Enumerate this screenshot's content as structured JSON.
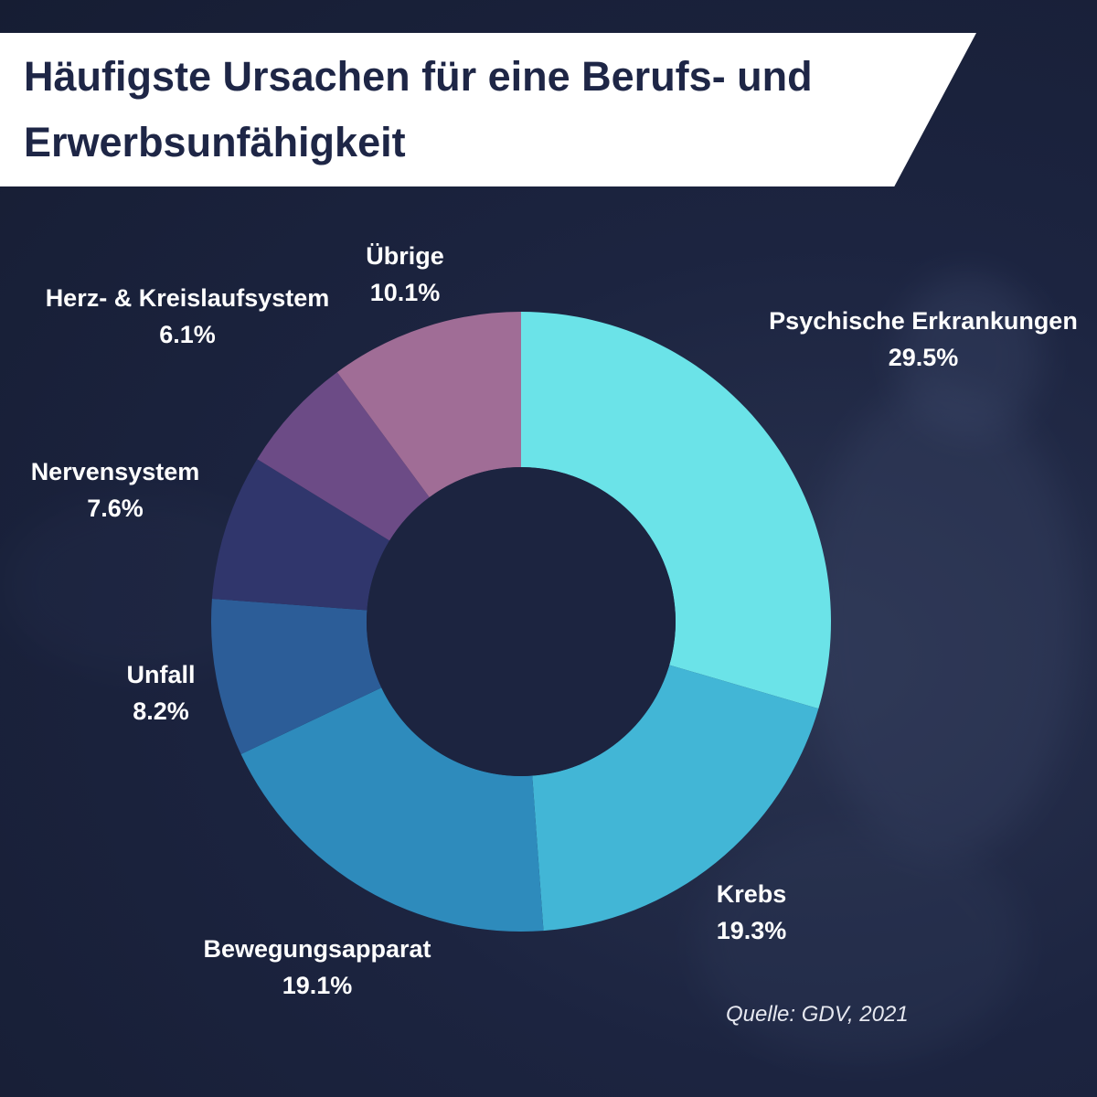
{
  "title": "Häufigste Ursachen für eine Berufs- und Erwerbsunfähigkeit",
  "source": "Quelle: GDV, 2021",
  "chart_data": {
    "type": "pie",
    "variant": "donut",
    "title": "Häufigste Ursachen für eine Berufs- und Erwerbsunfähigkeit",
    "unit": "%",
    "slices": [
      {
        "label": "Psychische Erkrankungen",
        "value": 29.5,
        "display": "29.5%",
        "color": "#6be3e8"
      },
      {
        "label": "Krebs",
        "value": 19.3,
        "display": "19.3%",
        "color": "#42b6d6"
      },
      {
        "label": "Bewegungsapparat",
        "value": 19.1,
        "display": "19.1%",
        "color": "#2e8bbc"
      },
      {
        "label": "Unfall",
        "value": 8.2,
        "display": "8.2%",
        "color": "#2c5d98"
      },
      {
        "label": "Nervensystem",
        "value": 7.6,
        "display": "7.6%",
        "color": "#30366c"
      },
      {
        "label": "Herz- & Kreislaufsystem",
        "value": 6.1,
        "display": "6.1%",
        "color": "#6c4b86"
      },
      {
        "label": "Übrige",
        "value": 10.1,
        "display": "10.1%",
        "color": "#a06d96"
      }
    ],
    "legend": "labels around the chart"
  }
}
